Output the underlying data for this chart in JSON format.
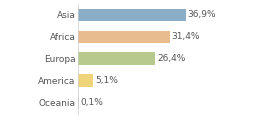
{
  "categories": [
    "Asia",
    "Africa",
    "Europa",
    "America",
    "Oceania"
  ],
  "values": [
    36.9,
    31.4,
    26.4,
    5.1,
    0.1
  ],
  "labels": [
    "36,9%",
    "31,4%",
    "26,4%",
    "5,1%",
    "0,1%"
  ],
  "bar_colors": [
    "#8aaec8",
    "#e8bc8e",
    "#b8c98e",
    "#f0d47a",
    "#d0d0d0"
  ],
  "background_color": "#ffffff",
  "label_fontsize": 6.5,
  "tick_fontsize": 6.5,
  "xlim": [
    0,
    52
  ],
  "bar_height": 0.58
}
